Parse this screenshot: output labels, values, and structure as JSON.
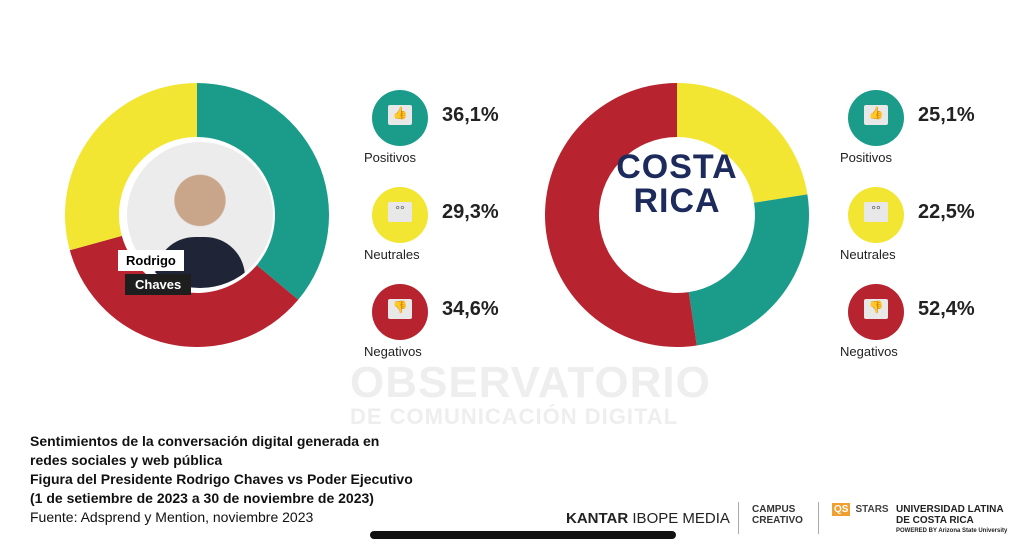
{
  "chart_data": [
    {
      "type": "pie",
      "subject": "Rodrigo Chaves",
      "labels": [
        "Positivos",
        "Negativos",
        "Neutrales"
      ],
      "values": [
        36.1,
        34.6,
        29.3
      ],
      "colors": [
        "#1b9c8a",
        "#b7232e",
        "#f2e632"
      ]
    },
    {
      "type": "pie",
      "subject": "Costa Rica",
      "labels": [
        "Neutrales",
        "Positivos",
        "Negativos"
      ],
      "values": [
        22.5,
        25.1,
        52.4
      ],
      "colors": [
        "#f2e632",
        "#1b9c8a",
        "#b7232e"
      ]
    }
  ],
  "left": {
    "name_line1": "Rodrigo",
    "name_line2": "Chaves",
    "legend": [
      {
        "label": "Positivos",
        "pct": "36,1%",
        "color": "#1b9c8a",
        "icon": "thumbs-up-icon",
        "glyph": "👍"
      },
      {
        "label": "Neutrales",
        "pct": "29,3%",
        "color": "#f2e632",
        "icon": "neutral-face-icon",
        "glyph": "°°"
      },
      {
        "label": "Negativos",
        "pct": "34,6%",
        "color": "#b7232e",
        "icon": "thumbs-down-icon",
        "glyph": "👎"
      }
    ]
  },
  "right": {
    "logo_line1": "COSTA",
    "logo_line2": "RICA",
    "legend": [
      {
        "label": "Positivos",
        "pct": "25,1%",
        "color": "#1b9c8a",
        "icon": "thumbs-up-icon",
        "glyph": "👍"
      },
      {
        "label": "Neutrales",
        "pct": "22,5%",
        "color": "#f2e632",
        "icon": "neutral-face-icon",
        "glyph": "°°"
      },
      {
        "label": "Negativos",
        "pct": "52,4%",
        "color": "#b7232e",
        "icon": "thumbs-down-icon",
        "glyph": "👎"
      }
    ]
  },
  "watermark": {
    "line1": "OBSERVATORIO",
    "line2": "DE COMUNICACIÓN DIGITAL"
  },
  "caption": {
    "line1": "Sentimientos de la conversación digital generada en",
    "line2": "redes sociales y web pública",
    "line3": "Figura del Presidente Rodrigo Chaves vs Poder Ejecutivo",
    "line4": "(1 de setiembre de 2023 a 30 de noviembre de 2023)",
    "source": "Fuente: Adsprend y Mention, noviembre 2023"
  },
  "logos": {
    "kantar_bold": "KANTAR",
    "kantar_rest": "IBOPE MEDIA",
    "campus1": "CAMPUS",
    "campus2": "CREATIVO",
    "qs_badge": "QS",
    "qs_text": "STARS",
    "ulatina1": "UNIVERSIDAD LATINA",
    "ulatina2": "DE COSTA RICA",
    "ulatina3": "POWERED BY Arizona State University"
  }
}
